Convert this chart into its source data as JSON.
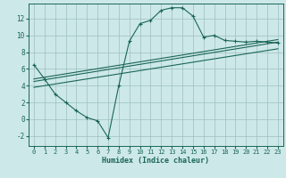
{
  "xlabel": "Humidex (Indice chaleur)",
  "bg_color": "#cde8e8",
  "grid_color": "#9dbfbf",
  "line_color": "#1a6655",
  "xlim": [
    -0.5,
    23.5
  ],
  "ylim": [
    -3.2,
    13.8
  ],
  "xticks": [
    0,
    1,
    2,
    3,
    4,
    5,
    6,
    7,
    8,
    9,
    10,
    11,
    12,
    13,
    14,
    15,
    16,
    17,
    18,
    19,
    20,
    21,
    22,
    23
  ],
  "yticks": [
    -2,
    0,
    2,
    4,
    6,
    8,
    10,
    12
  ],
  "curve_x": [
    0,
    1,
    2,
    3,
    4,
    5,
    6,
    7,
    8,
    9,
    10,
    11,
    12,
    13,
    14,
    15,
    16,
    17,
    18,
    19,
    20,
    21,
    22,
    23
  ],
  "curve_y": [
    6.5,
    4.8,
    3.0,
    2.0,
    1.0,
    0.2,
    -0.2,
    -2.2,
    4.0,
    9.3,
    11.4,
    11.8,
    13.0,
    13.3,
    13.3,
    12.3,
    9.8,
    10.0,
    9.4,
    9.3,
    9.2,
    9.3,
    9.2,
    9.1
  ],
  "line1_x": [
    0,
    23
  ],
  "line1_y": [
    4.5,
    9.2
  ],
  "line2_x": [
    0,
    23
  ],
  "line2_y": [
    4.8,
    9.5
  ],
  "line3_x": [
    0,
    23
  ],
  "line3_y": [
    3.8,
    8.4
  ]
}
